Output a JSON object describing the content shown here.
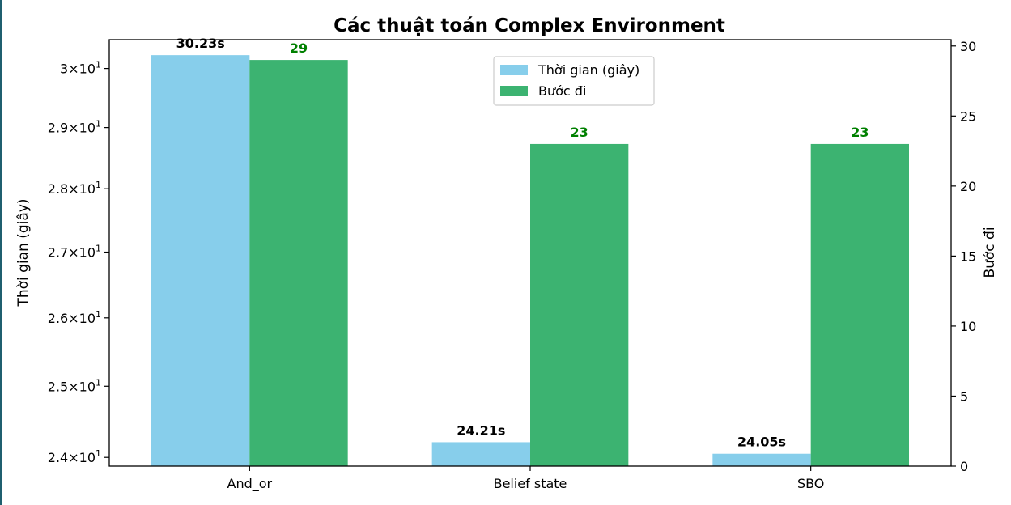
{
  "chart_data": {
    "type": "bar",
    "title": "Các thuật toán Complex Environment",
    "categories": [
      "And_or",
      "Belief state",
      "SBO"
    ],
    "series": [
      {
        "name": "Thời gian (giây)",
        "axis": "left",
        "values": [
          30.23,
          24.21,
          24.05
        ],
        "labels": [
          "30.23s",
          "24.21s",
          "24.05s"
        ],
        "color": "#87ceeb",
        "label_color": "#000000"
      },
      {
        "name": "Bước đi",
        "axis": "right",
        "values": [
          29,
          23,
          23
        ],
        "labels": [
          "29",
          "23",
          "23"
        ],
        "color": "#3cb371",
        "label_color": "#008000"
      }
    ],
    "y_left": {
      "label": "Thời gian (giây)",
      "scale": "log",
      "lim": [
        23.88,
        30.5
      ],
      "ticks": [
        24,
        25,
        26,
        27,
        28,
        29,
        30
      ],
      "tick_labels": [
        {
          "mant": "2.4",
          "base": "10",
          "exp": "1"
        },
        {
          "mant": "2.5",
          "base": "10",
          "exp": "1"
        },
        {
          "mant": "2.6",
          "base": "10",
          "exp": "1"
        },
        {
          "mant": "2.7",
          "base": "10",
          "exp": "1"
        },
        {
          "mant": "2.8",
          "base": "10",
          "exp": "1"
        },
        {
          "mant": "2.9",
          "base": "10",
          "exp": "1"
        },
        {
          "mant": "3",
          "base": "10",
          "exp": "1"
        }
      ]
    },
    "y_right": {
      "label": "Bước đi",
      "scale": "linear",
      "lim": [
        0,
        30.45
      ],
      "ticks": [
        0,
        5,
        10,
        15,
        20,
        25,
        30
      ],
      "tick_labels": [
        "0",
        "5",
        "10",
        "15",
        "20",
        "25",
        "30"
      ]
    },
    "legend": {
      "placement": "upper-center"
    },
    "grid": false,
    "times_sign": "×"
  }
}
